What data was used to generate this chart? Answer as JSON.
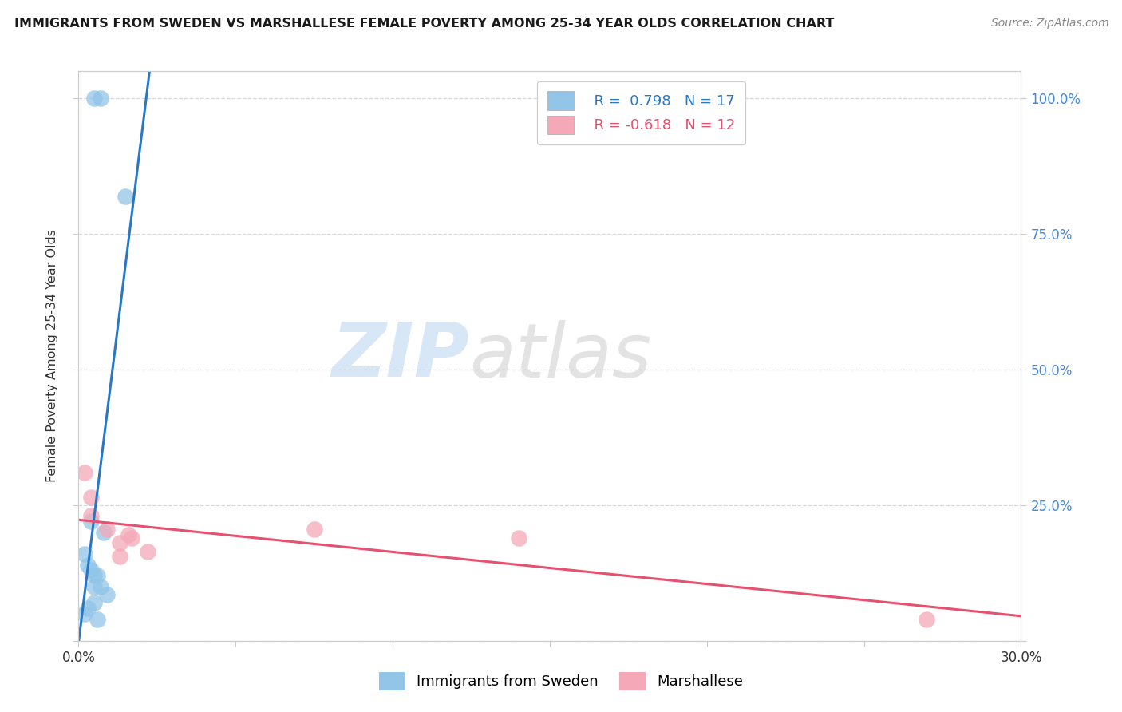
{
  "title": "IMMIGRANTS FROM SWEDEN VS MARSHALLESE FEMALE POVERTY AMONG 25-34 YEAR OLDS CORRELATION CHART",
  "source": "Source: ZipAtlas.com",
  "ylabel": "Female Poverty Among 25-34 Year Olds",
  "xlim": [
    0.0,
    0.3
  ],
  "ylim": [
    0.0,
    1.05
  ],
  "yticks": [
    0.0,
    0.25,
    0.5,
    0.75,
    1.0
  ],
  "xticks": [
    0.0,
    0.05,
    0.1,
    0.15,
    0.2,
    0.25,
    0.3
  ],
  "xtick_labels": [
    "0.0%",
    "",
    "",
    "",
    "",
    "",
    "30.0%"
  ],
  "right_ytick_labels": [
    "",
    "25.0%",
    "50.0%",
    "75.0%",
    "100.0%"
  ],
  "sweden_color": "#92c5e8",
  "marshallese_color": "#f4a8b8",
  "sweden_line_color": "#2878c8",
  "marshallese_line_color": "#e85070",
  "R_sweden": 0.798,
  "N_sweden": 17,
  "R_marshallese": -0.618,
  "N_marshallese": 12,
  "sweden_x": [
    0.005,
    0.007,
    0.015,
    0.004,
    0.008,
    0.002,
    0.003,
    0.004,
    0.005,
    0.006,
    0.005,
    0.007,
    0.009,
    0.005,
    0.003,
    0.002,
    0.006
  ],
  "sweden_y": [
    1.0,
    1.0,
    0.82,
    0.22,
    0.2,
    0.16,
    0.14,
    0.13,
    0.12,
    0.12,
    0.1,
    0.1,
    0.085,
    0.07,
    0.06,
    0.05,
    0.04
  ],
  "marshallese_x": [
    0.002,
    0.004,
    0.009,
    0.013,
    0.016,
    0.017,
    0.022,
    0.14,
    0.27,
    0.004,
    0.013,
    0.075
  ],
  "marshallese_y": [
    0.31,
    0.23,
    0.205,
    0.18,
    0.195,
    0.19,
    0.165,
    0.19,
    0.04,
    0.265,
    0.155,
    0.205
  ],
  "watermark_zip": "ZIP",
  "watermark_atlas": "atlas",
  "background_color": "#ffffff",
  "grid_color": "#d8d8d8",
  "legend_label_sweden": "Immigrants from Sweden",
  "legend_label_marshallese": "Marshallese"
}
